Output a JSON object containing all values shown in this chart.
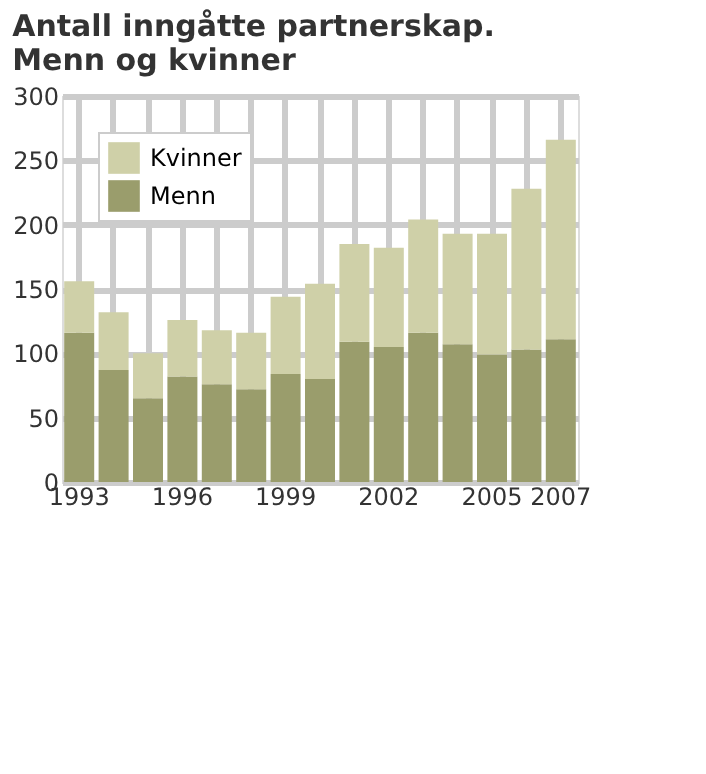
{
  "chart_data": {
    "type": "bar",
    "title": "Antall inngåtte partnerskap.\nMenn og kvinner",
    "stacked": true,
    "categories": [
      "1993",
      null,
      null,
      "1996",
      null,
      null,
      "1999",
      null,
      null,
      "2002",
      null,
      null,
      "2005",
      null,
      "2007"
    ],
    "series": [
      {
        "name": "Menn",
        "color": "#9a9d6c",
        "values": [
          116,
          87,
          65,
          82,
          76,
          72,
          84,
          80,
          109,
          105,
          116,
          107,
          99,
          103,
          111
        ]
      },
      {
        "name": "Kvinner",
        "color": "#cfd0a8",
        "values": [
          40,
          45,
          35,
          44,
          42,
          44,
          60,
          74,
          76,
          77,
          88,
          86,
          94,
          125,
          155
        ]
      }
    ],
    "ylim": [
      0,
      300
    ],
    "yticks": [
      0,
      50,
      100,
      150,
      200,
      250,
      300
    ],
    "grid": true,
    "legend": "top left"
  }
}
